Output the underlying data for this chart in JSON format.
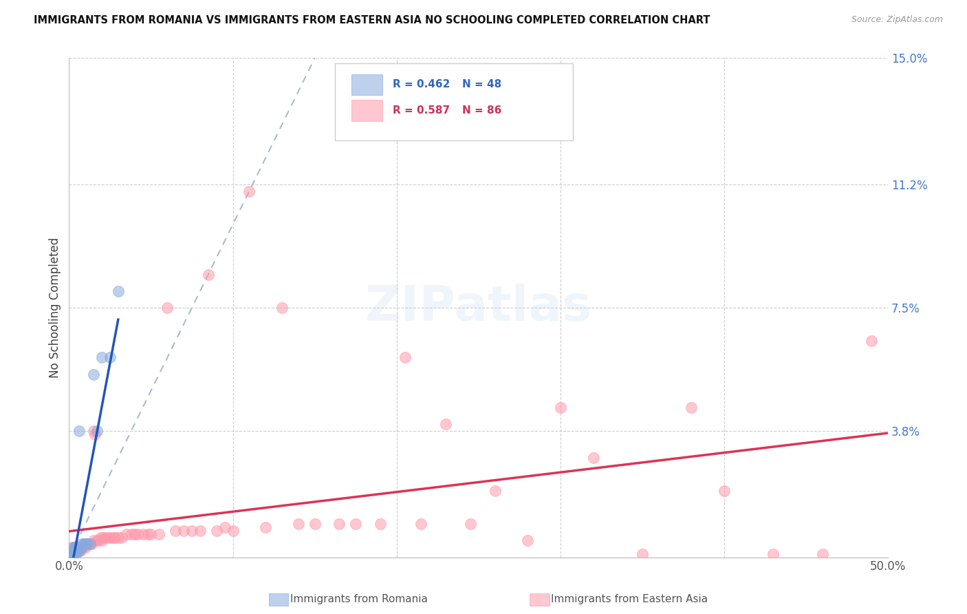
{
  "title": "IMMIGRANTS FROM ROMANIA VS IMMIGRANTS FROM EASTERN ASIA NO SCHOOLING COMPLETED CORRELATION CHART",
  "source": "Source: ZipAtlas.com",
  "ylabel": "No Schooling Completed",
  "xlim": [
    0,
    0.5
  ],
  "ylim": [
    0,
    0.15
  ],
  "ytick_right_values": [
    0.0,
    0.038,
    0.075,
    0.112,
    0.15
  ],
  "ytick_right_labels": [
    "",
    "3.8%",
    "7.5%",
    "11.2%",
    "15.0%"
  ],
  "legend_label1": "Immigrants from Romania",
  "legend_label2": "Immigrants from Eastern Asia",
  "legend_r1": "R = 0.462",
  "legend_n1": "N = 48",
  "legend_r2": "R = 0.587",
  "legend_n2": "N = 86",
  "color_romania": "#88AADD",
  "color_eastern_asia": "#FF99AA",
  "color_romania_line": "#2255BB",
  "color_eastern_asia_line": "#DD3355",
  "color_diag_line": "#AABBCC",
  "romania_x": [
    0.0005,
    0.001,
    0.001,
    0.001,
    0.001,
    0.0015,
    0.0015,
    0.002,
    0.002,
    0.002,
    0.002,
    0.0025,
    0.0025,
    0.003,
    0.003,
    0.003,
    0.003,
    0.003,
    0.003,
    0.0035,
    0.0035,
    0.004,
    0.004,
    0.004,
    0.004,
    0.004,
    0.005,
    0.005,
    0.005,
    0.005,
    0.005,
    0.005,
    0.006,
    0.006,
    0.006,
    0.007,
    0.007,
    0.008,
    0.008,
    0.009,
    0.01,
    0.011,
    0.013,
    0.015,
    0.017,
    0.02,
    0.025,
    0.03
  ],
  "romania_y": [
    0.001,
    0.001,
    0.001,
    0.001,
    0.002,
    0.001,
    0.002,
    0.001,
    0.001,
    0.001,
    0.002,
    0.001,
    0.002,
    0.001,
    0.001,
    0.002,
    0.002,
    0.002,
    0.003,
    0.002,
    0.002,
    0.001,
    0.002,
    0.002,
    0.003,
    0.003,
    0.002,
    0.002,
    0.003,
    0.003,
    0.003,
    0.003,
    0.002,
    0.003,
    0.038,
    0.003,
    0.003,
    0.003,
    0.004,
    0.004,
    0.004,
    0.004,
    0.004,
    0.055,
    0.038,
    0.06,
    0.06,
    0.08
  ],
  "eastern_asia_x": [
    0.001,
    0.001,
    0.002,
    0.002,
    0.002,
    0.002,
    0.003,
    0.003,
    0.003,
    0.003,
    0.004,
    0.004,
    0.004,
    0.004,
    0.005,
    0.005,
    0.005,
    0.006,
    0.006,
    0.006,
    0.007,
    0.007,
    0.008,
    0.008,
    0.009,
    0.009,
    0.01,
    0.01,
    0.011,
    0.012,
    0.013,
    0.014,
    0.015,
    0.015,
    0.016,
    0.017,
    0.018,
    0.019,
    0.02,
    0.021,
    0.022,
    0.024,
    0.025,
    0.027,
    0.028,
    0.03,
    0.032,
    0.035,
    0.038,
    0.04,
    0.042,
    0.045,
    0.048,
    0.05,
    0.055,
    0.06,
    0.065,
    0.07,
    0.075,
    0.08,
    0.085,
    0.09,
    0.095,
    0.1,
    0.11,
    0.12,
    0.13,
    0.14,
    0.15,
    0.165,
    0.175,
    0.19,
    0.205,
    0.215,
    0.23,
    0.245,
    0.26,
    0.28,
    0.3,
    0.32,
    0.35,
    0.38,
    0.4,
    0.43,
    0.46,
    0.49
  ],
  "eastern_asia_y": [
    0.001,
    0.002,
    0.001,
    0.002,
    0.002,
    0.003,
    0.001,
    0.002,
    0.003,
    0.003,
    0.001,
    0.002,
    0.003,
    0.003,
    0.002,
    0.002,
    0.003,
    0.002,
    0.003,
    0.003,
    0.002,
    0.003,
    0.003,
    0.003,
    0.003,
    0.004,
    0.003,
    0.004,
    0.004,
    0.004,
    0.004,
    0.004,
    0.038,
    0.005,
    0.037,
    0.005,
    0.005,
    0.006,
    0.005,
    0.006,
    0.006,
    0.006,
    0.006,
    0.006,
    0.006,
    0.006,
    0.006,
    0.007,
    0.007,
    0.007,
    0.007,
    0.007,
    0.007,
    0.007,
    0.007,
    0.075,
    0.008,
    0.008,
    0.008,
    0.008,
    0.085,
    0.008,
    0.009,
    0.008,
    0.11,
    0.009,
    0.075,
    0.01,
    0.01,
    0.01,
    0.01,
    0.01,
    0.06,
    0.01,
    0.04,
    0.01,
    0.02,
    0.005,
    0.045,
    0.03,
    0.001,
    0.045,
    0.02,
    0.001,
    0.001,
    0.065
  ]
}
